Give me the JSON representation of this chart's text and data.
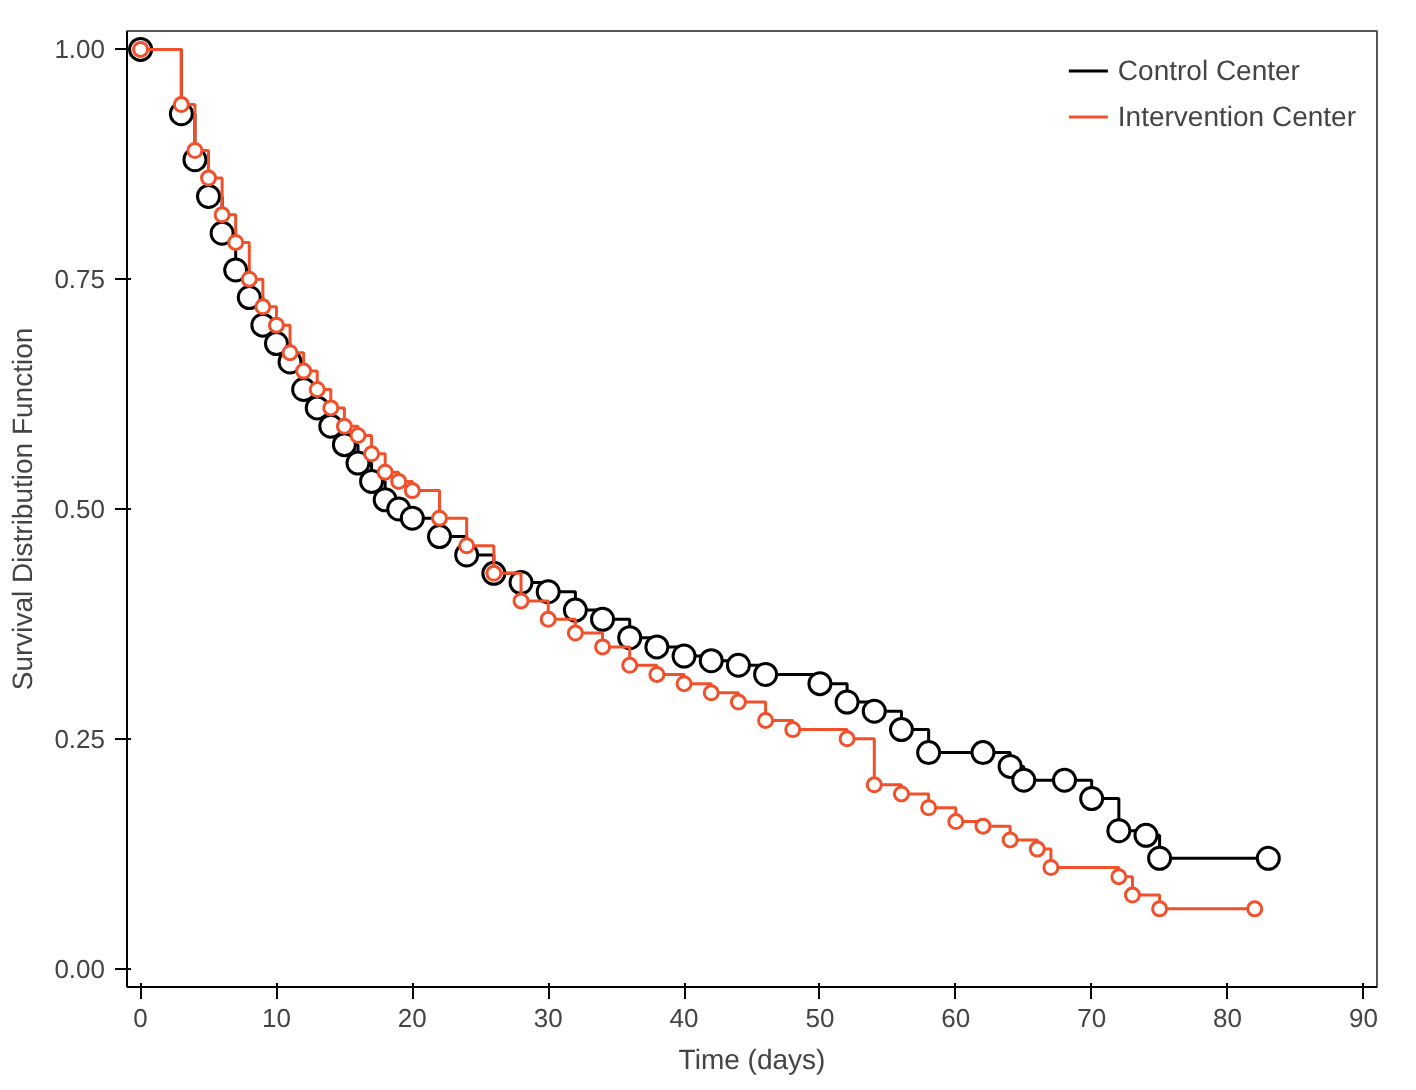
{
  "chart_data": {
    "type": "step",
    "xlabel": "Time (days)",
    "ylabel": "Survival Distribution Function",
    "xlim": [
      -1,
      91
    ],
    "ylim": [
      -0.02,
      1.02
    ],
    "xticks": [
      0,
      10,
      20,
      30,
      40,
      50,
      60,
      70,
      80,
      90
    ],
    "yticks": [
      {
        "value": 0,
        "label": "0.00"
      },
      {
        "value": 0.25,
        "label": "0.25"
      },
      {
        "value": 0.5,
        "label": "0.50"
      },
      {
        "value": 0.75,
        "label": "0.75"
      },
      {
        "value": 1,
        "label": "1.00"
      }
    ],
    "grid": false,
    "legend": "top right",
    "marker": "circle",
    "line_style": "solid",
    "series": [
      {
        "name": "Control Center",
        "color": "#000000",
        "x": [
          0,
          3,
          4,
          5,
          6,
          7,
          8,
          9,
          10,
          11,
          12,
          13,
          14,
          15,
          16,
          17,
          18,
          19,
          20,
          22,
          24,
          26,
          28,
          30,
          32,
          34,
          36,
          38,
          40,
          42,
          44,
          46,
          50,
          52,
          54,
          56,
          58,
          62,
          64,
          65,
          68,
          70,
          72,
          74,
          75,
          83
        ],
        "values": [
          1.0,
          0.93,
          0.88,
          0.84,
          0.8,
          0.76,
          0.73,
          0.7,
          0.68,
          0.66,
          0.63,
          0.61,
          0.59,
          0.57,
          0.55,
          0.53,
          0.51,
          0.5,
          0.49,
          0.47,
          0.45,
          0.43,
          0.42,
          0.41,
          0.39,
          0.38,
          0.36,
          0.35,
          0.34,
          0.335,
          0.33,
          0.32,
          0.31,
          0.29,
          0.28,
          0.26,
          0.235,
          0.235,
          0.22,
          0.205,
          0.205,
          0.185,
          0.15,
          0.145,
          0.12,
          0.12
        ]
      },
      {
        "name": "Intervention Center",
        "color": "#f0502a",
        "x": [
          0,
          3,
          4,
          5,
          6,
          7,
          8,
          9,
          10,
          11,
          12,
          13,
          14,
          15,
          16,
          17,
          18,
          19,
          20,
          22,
          24,
          26,
          28,
          30,
          32,
          34,
          36,
          38,
          40,
          42,
          44,
          46,
          48,
          52,
          54,
          56,
          58,
          60,
          62,
          64,
          66,
          67,
          72,
          73,
          75,
          82
        ],
        "values": [
          1.0,
          0.94,
          0.89,
          0.86,
          0.82,
          0.79,
          0.75,
          0.72,
          0.7,
          0.67,
          0.65,
          0.63,
          0.61,
          0.59,
          0.58,
          0.56,
          0.54,
          0.53,
          0.52,
          0.49,
          0.46,
          0.43,
          0.4,
          0.38,
          0.365,
          0.35,
          0.33,
          0.32,
          0.31,
          0.3,
          0.29,
          0.27,
          0.26,
          0.25,
          0.2,
          0.19,
          0.175,
          0.16,
          0.155,
          0.14,
          0.13,
          0.11,
          0.1,
          0.08,
          0.065,
          0.065
        ]
      }
    ]
  }
}
